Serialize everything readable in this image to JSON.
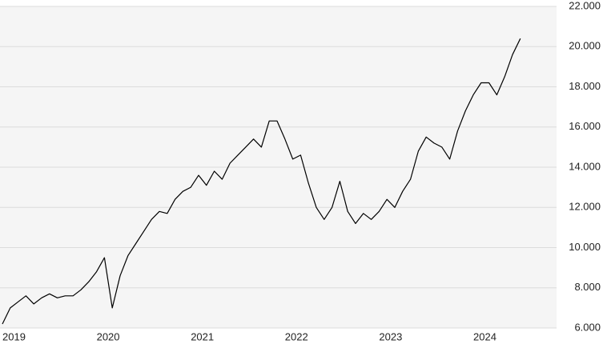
{
  "chart_data": {
    "type": "line",
    "categories": [
      "2019",
      null,
      null,
      null,
      null,
      null,
      null,
      null,
      null,
      null,
      null,
      null,
      "2020",
      null,
      null,
      null,
      null,
      null,
      null,
      null,
      null,
      null,
      null,
      null,
      "2021",
      null,
      null,
      null,
      null,
      null,
      null,
      null,
      null,
      null,
      null,
      null,
      "2022",
      null,
      null,
      null,
      null,
      null,
      null,
      null,
      null,
      null,
      null,
      null,
      "2023",
      null,
      null,
      null,
      null,
      null,
      null,
      null,
      null,
      null,
      null,
      null,
      "2024",
      null,
      null,
      null,
      null,
      null,
      null
    ],
    "series": [
      {
        "color": "#000000",
        "values": [
          6200,
          7000,
          7300,
          7600,
          7200,
          7500,
          7700,
          7500,
          7600,
          7600,
          7900,
          8300,
          8800,
          9500,
          7000,
          8600,
          9600,
          10200,
          10800,
          11400,
          11800,
          11700,
          12400,
          12800,
          13000,
          13600,
          13100,
          13800,
          13400,
          14200,
          14600,
          15000,
          15400,
          15000,
          16300,
          16300,
          15400,
          14400,
          14600,
          13200,
          12000,
          11400,
          12000,
          13300,
          11800,
          11200,
          11700,
          11400,
          11800,
          12400,
          12000,
          12800,
          13400,
          14800,
          15500,
          15200,
          15000,
          14400,
          15800,
          16800,
          17600,
          18200,
          18200,
          17600,
          18500,
          19600,
          20400
        ]
      }
    ],
    "ylim": [
      6000,
      22000
    ],
    "yticks": [
      {
        "value": 6000,
        "label": "6.000"
      },
      {
        "value": 8000,
        "label": "8.000"
      },
      {
        "value": 10000,
        "label": "10.000"
      },
      {
        "value": 12000,
        "label": "12.000"
      },
      {
        "value": 14000,
        "label": "14.000"
      },
      {
        "value": 16000,
        "label": "16.000"
      },
      {
        "value": 18000,
        "label": "18.000"
      },
      {
        "value": 20000,
        "label": "20.000"
      },
      {
        "value": 22000,
        "label": "22.000"
      }
    ],
    "grid": true
  }
}
